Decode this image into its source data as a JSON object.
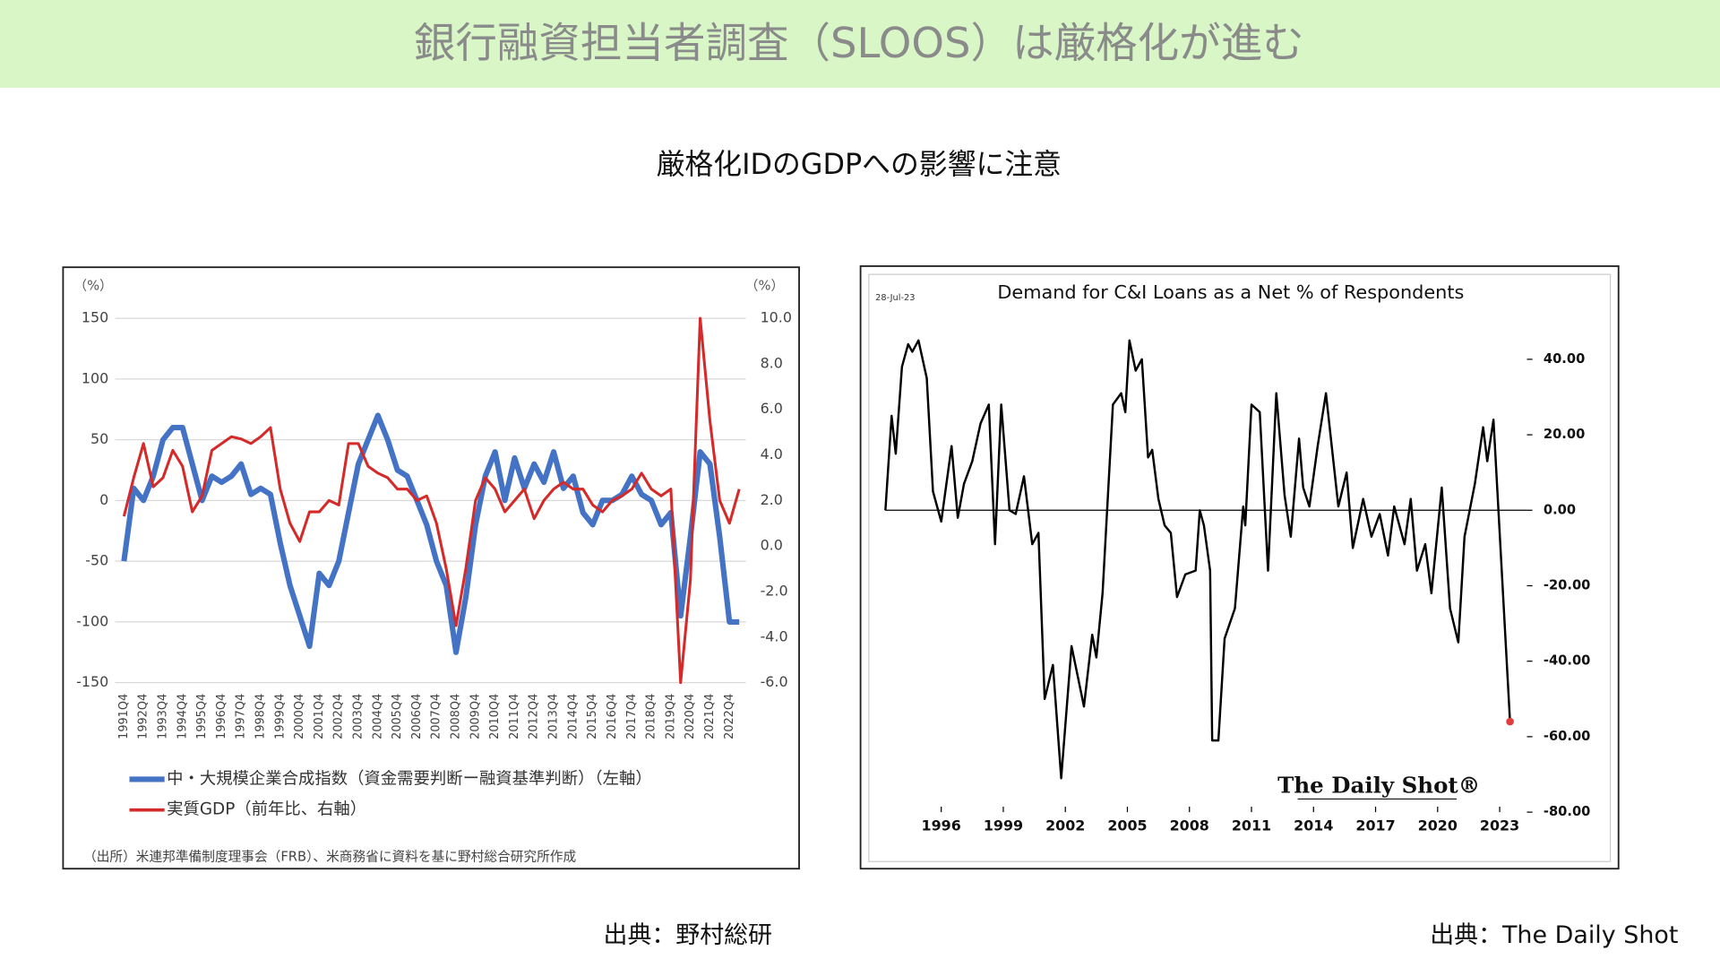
{
  "header": {
    "title": "銀行融資担当者調査（SLOOS）は厳格化が進む"
  },
  "subtitle": "厳格化IDのGDPへの影響に注意",
  "sources": [
    "出典：野村総研",
    "出典：The Daily Shot"
  ],
  "chart_data": [
    {
      "type": "line",
      "ylabel": "（%）",
      "y2label": "（%）",
      "categories": [
        "1991Q4",
        null,
        "1992Q4",
        null,
        "1993Q4",
        null,
        "1994Q4",
        null,
        "1995Q4",
        null,
        "1996Q4",
        null,
        "1997Q4",
        null,
        "1998Q4",
        null,
        "1999Q4",
        null,
        "2000Q4",
        null,
        "2001Q4",
        null,
        "2002Q4",
        null,
        "2003Q4",
        null,
        "2004Q4",
        null,
        "2005Q4",
        null,
        "2006Q4",
        null,
        "2007Q4",
        null,
        "2008Q4",
        null,
        "2009Q4",
        null,
        "2010Q4",
        null,
        "2011Q4",
        null,
        "2012Q4",
        null,
        "2013Q4",
        null,
        "2014Q4",
        null,
        "2015Q4",
        null,
        "2016Q4",
        null,
        "2017Q4",
        null,
        "2018Q4",
        null,
        "2019Q4",
        null,
        "2020Q4",
        null,
        "2021Q4",
        null,
        "2022Q4",
        null
      ],
      "series": [
        {
          "name": "中・大規模企業合成指数（資金需要判断ー融資基準判断）（左軸）",
          "color": "#4472c4",
          "values": [
            -50,
            10,
            0,
            20,
            50,
            60,
            60,
            30,
            0,
            20,
            15,
            20,
            30,
            5,
            10,
            5,
            -35,
            -70,
            -95,
            -120,
            -60,
            -70,
            -50,
            -10,
            30,
            50,
            70,
            50,
            25,
            20,
            0,
            -20,
            -50,
            -70,
            -125,
            -80,
            -20,
            20,
            40,
            0,
            35,
            10,
            30,
            15,
            40,
            10,
            20,
            -10,
            -20,
            0,
            0,
            5,
            20,
            5,
            0,
            -20,
            -10,
            -95,
            -30,
            40,
            30,
            -30,
            -100,
            -100
          ]
        },
        {
          "name": "実質GDP（前年比、右軸）",
          "color": "#d42a2a",
          "axis": "y2",
          "values": [
            1.3,
            3.0,
            4.5,
            2.6,
            3.0,
            4.2,
            3.5,
            1.5,
            2.2,
            4.2,
            4.5,
            4.8,
            4.7,
            4.5,
            4.8,
            5.2,
            2.5,
            1.0,
            0.2,
            1.5,
            1.5,
            2.0,
            1.8,
            4.5,
            4.5,
            3.5,
            3.2,
            3.0,
            2.5,
            2.5,
            2.0,
            2.2,
            1.0,
            -1.0,
            -3.5,
            -1.0,
            2.0,
            3.0,
            2.5,
            1.5,
            2.0,
            2.5,
            1.2,
            2.0,
            2.5,
            2.8,
            2.5,
            2.5,
            1.8,
            1.5,
            2.0,
            2.2,
            2.5,
            3.2,
            2.5,
            2.2,
            2.5,
            -6.0,
            -1.5,
            10.0,
            5.5,
            2.0,
            1.0,
            2.5
          ]
        }
      ],
      "ylim": [
        -150,
        150
      ],
      "yticks": [
        150,
        100,
        50,
        0,
        -50,
        -100,
        -150
      ],
      "y2lim": [
        -6,
        10
      ],
      "y2ticks": [
        {
          "value": 10,
          "label": "10.0"
        },
        {
          "value": 8,
          "label": "8.0"
        },
        {
          "value": 6,
          "label": "6.0"
        },
        {
          "value": 4,
          "label": "4.0"
        },
        {
          "value": 2,
          "label": "2.0"
        },
        {
          "value": 0,
          "label": "0.0"
        },
        {
          "value": -2,
          "label": "-2.0"
        },
        {
          "value": -4,
          "label": "-4.0"
        },
        {
          "value": -6,
          "label": "-6.0"
        }
      ],
      "grid": true,
      "note": "（出所）米連邦準備制度理事会（FRB）、米商務省に資料を基に野村総合研究所作成"
    },
    {
      "type": "line",
      "title": "Demand for C&I Loans as a Net % of Respondents",
      "date_label": "28-Jul-23",
      "logo": "The Daily Shot®",
      "x": [
        1993.3,
        1993.6,
        1993.8,
        1994.1,
        1994.4,
        1994.6,
        1994.9,
        1995.3,
        1995.6,
        1996,
        1996.5,
        1996.8,
        1997.1,
        1997.5,
        1997.9,
        1998.3,
        1998.6,
        1998.9,
        1999.3,
        1999.6,
        2000,
        2000.4,
        2000.7,
        2001,
        2001.4,
        2001.8,
        2002.3,
        2002.9,
        2003.3,
        2003.5,
        2003.8,
        2004.3,
        2004.7,
        2004.9,
        2005.1,
        2005.4,
        2005.7,
        2006,
        2006.2,
        2006.5,
        2006.8,
        2007.1,
        2007.4,
        2007.8,
        2008.3,
        2008.5,
        2008.7,
        2009,
        2009.1,
        2009.4,
        2009.7,
        2010.2,
        2010.6,
        2010.7,
        2011,
        2011.4,
        2011.8,
        2012.2,
        2012.6,
        2012.9,
        2013.3,
        2013.5,
        2013.8,
        2014.2,
        2014.6,
        2014.9,
        2015.2,
        2015.6,
        2015.9,
        2016.4,
        2016.8,
        2017.2,
        2017.6,
        2017.9,
        2018.4,
        2018.7,
        2019,
        2019.4,
        2019.7,
        2020.2,
        2020.6,
        2021,
        2021.3,
        2021.8,
        2022.2,
        2022.4,
        2022.7,
        2023.5
      ],
      "series": [
        {
          "color": "#000000",
          "values": [
            0,
            25,
            15,
            38,
            44,
            42,
            45,
            35,
            5,
            -3,
            17,
            -2,
            7,
            13,
            23,
            28,
            -9,
            28,
            0,
            -1,
            9,
            -9,
            -6,
            -50,
            -41,
            -71,
            -36,
            -52,
            -33,
            -39,
            -22,
            28,
            31,
            26,
            45,
            37,
            40,
            14,
            16,
            3,
            -4,
            -6,
            -23,
            -17,
            -16,
            0,
            -4,
            -16,
            -61,
            -61,
            -34,
            -26,
            1,
            -4,
            28,
            26,
            -16,
            31,
            4,
            -7,
            19,
            6,
            1,
            17,
            31,
            16,
            1,
            10,
            -10,
            3,
            -7,
            -1,
            -12,
            1,
            -9,
            3,
            -16,
            -9,
            -22,
            6,
            -26,
            -35,
            -7,
            7,
            22,
            13,
            24,
            -56
          ]
        }
      ],
      "end_marker_color": "#e03c3c",
      "xlim": [
        1993,
        2024
      ],
      "xticks": [
        1996,
        1999,
        2002,
        2005,
        2008,
        2011,
        2014,
        2017,
        2020,
        2023
      ],
      "ylim": [
        -80,
        50
      ],
      "yticks": [
        {
          "value": 40,
          "label": "40.00"
        },
        {
          "value": 20,
          "label": "20.00"
        },
        {
          "value": 0,
          "label": "0.00"
        },
        {
          "value": -20,
          "label": "-20.00"
        },
        {
          "value": -40,
          "label": "-40.00"
        },
        {
          "value": -60,
          "label": "-60.00"
        },
        {
          "value": -80,
          "label": "-80.00"
        }
      ],
      "zero_line": true
    }
  ]
}
